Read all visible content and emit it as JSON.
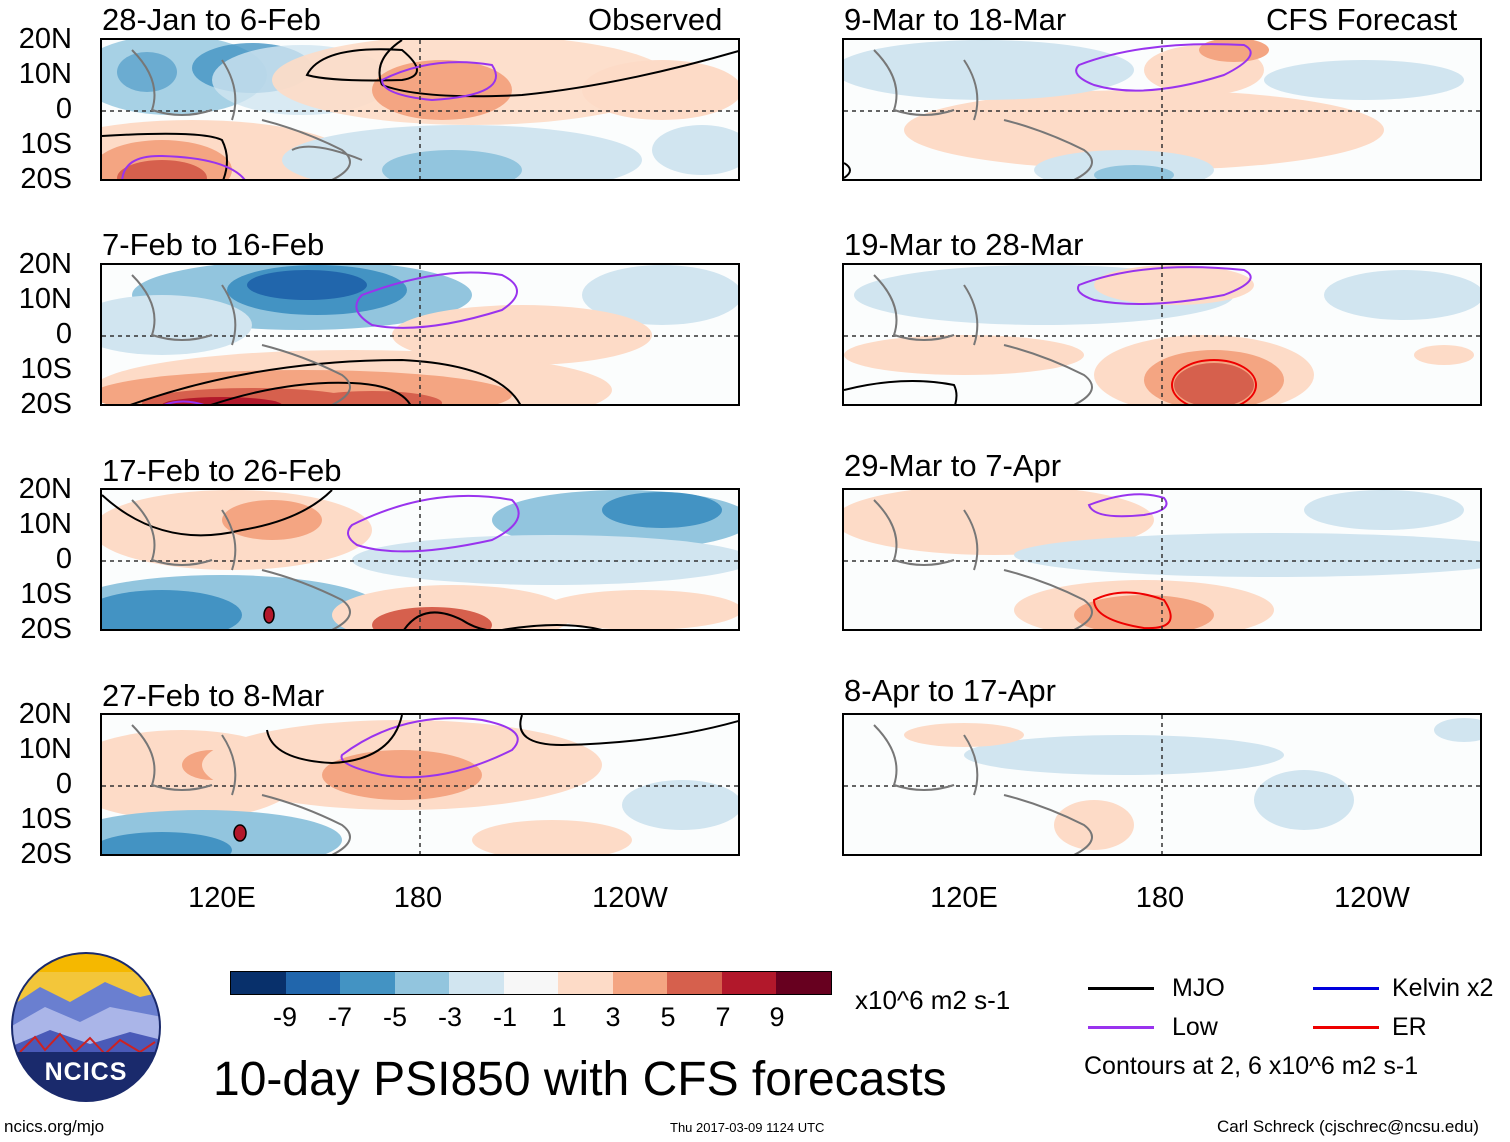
{
  "panels": [
    {
      "id": "p1",
      "title": "28-Jan to 6-Feb",
      "tag": "Observed"
    },
    {
      "id": "p2",
      "title": "9-Mar to 18-Mar",
      "tag": "CFS Forecast"
    },
    {
      "id": "p3",
      "title": "7-Feb to 16-Feb",
      "tag": ""
    },
    {
      "id": "p4",
      "title": "19-Mar to 28-Mar",
      "tag": ""
    },
    {
      "id": "p5",
      "title": "17-Feb to 26-Feb",
      "tag": ""
    },
    {
      "id": "p6",
      "title": "29-Mar to 7-Apr",
      "tag": ""
    },
    {
      "id": "p7",
      "title": "27-Feb to 8-Mar",
      "tag": ""
    },
    {
      "id": "p8",
      "title": "8-Apr to 17-Apr",
      "tag": ""
    }
  ],
  "lat_labels": [
    "20N",
    "10N",
    "0",
    "10S",
    "20S"
  ],
  "lon_labels": [
    "120E",
    "180",
    "120W"
  ],
  "colorbar": {
    "colors": [
      "#08306b",
      "#2166ac",
      "#4393c3",
      "#92c5de",
      "#d1e5f0",
      "#f7f7f7",
      "#fddbc7",
      "#f4a582",
      "#d6604d",
      "#b2182b",
      "#67001f"
    ],
    "ticks": [
      "-9",
      "-7",
      "-5",
      "-3",
      "-1",
      "1",
      "3",
      "5",
      "7",
      "9"
    ],
    "units": "x10^6 m2 s-1"
  },
  "legend": {
    "items": [
      {
        "label": "MJO",
        "color": "#000000"
      },
      {
        "label": "Kelvin x2",
        "color": "#0000dd"
      },
      {
        "label": "Low",
        "color": "#9933ee"
      },
      {
        "label": "ER",
        "color": "#ee0000"
      }
    ],
    "note": "Contours at 2, 6 x10^6 m2 s-1"
  },
  "title": "10-day PSI850 with CFS forecasts",
  "logo": {
    "text": "NCICS"
  },
  "footer": {
    "left": "ncics.org/mjo",
    "center": "Thu 2017-03-09 1124 UTC",
    "right": "Carl Schreck (cjschrec@ncsu.edu)"
  }
}
